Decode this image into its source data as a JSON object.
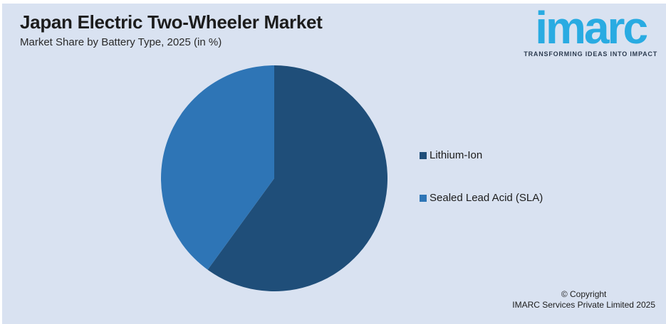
{
  "header": {
    "title": "Japan Electric Two-Wheeler Market",
    "subtitle": "Market Share by Battery Type, 2025 (in %)"
  },
  "logo": {
    "name": "imarc",
    "tagline": "TRANSFORMING IDEAS INTO IMPACT",
    "color": "#29ABE2",
    "tagline_color": "#2B3A4F"
  },
  "colors": {
    "background": "#D9E2F1",
    "page_border": "#FFFFFF"
  },
  "chart_data": {
    "type": "pie",
    "title": "Japan Electric Two-Wheeler Market",
    "subtitle": "Market Share by Battery Type, 2025 (in %)",
    "unit": "%",
    "start_angle_deg": 0,
    "direction": "clockwise",
    "legend_position": "right",
    "data_labels": false,
    "series": [
      {
        "name": "Lithium-Ion",
        "value": 60,
        "color": "#1F4E79"
      },
      {
        "name": "Sealed Lead Acid (SLA)",
        "value": 40,
        "color": "#2E75B6"
      }
    ]
  },
  "footer": {
    "copyright_line1": "© Copyright",
    "copyright_line2": "IMARC Services Private Limited 2025"
  }
}
